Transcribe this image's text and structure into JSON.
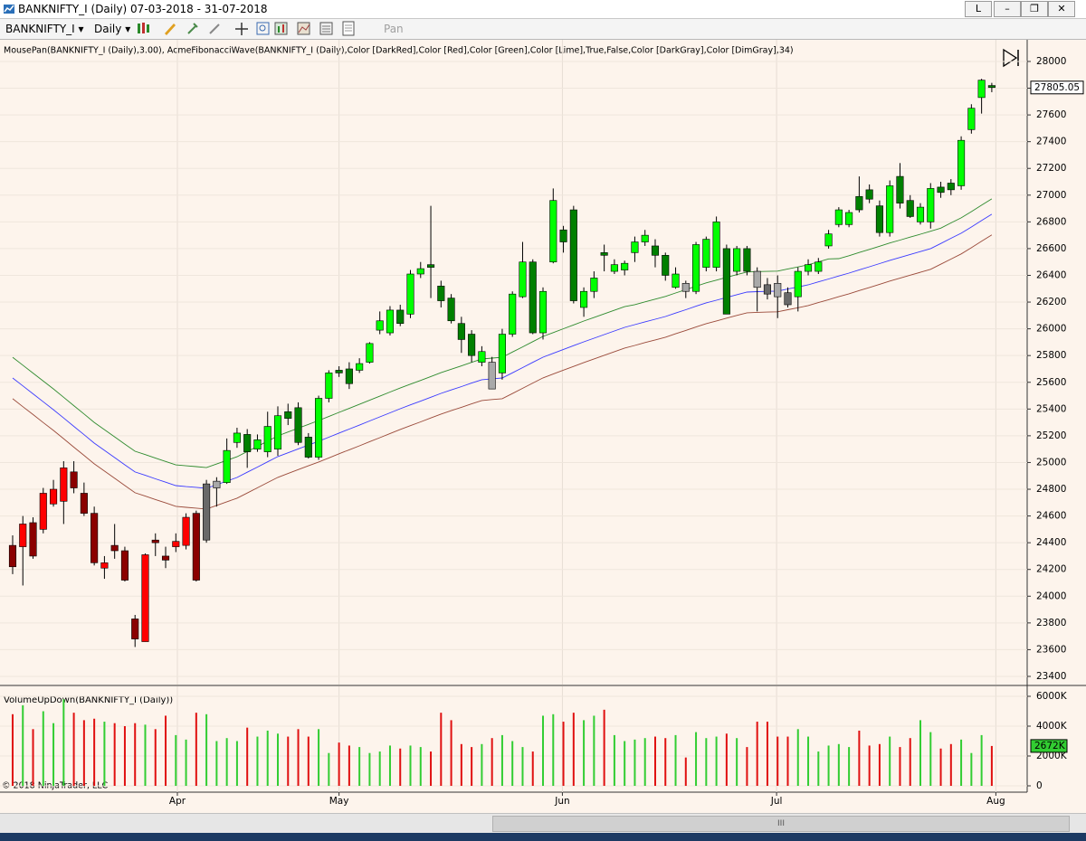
{
  "window": {
    "title": "BANKNIFTY_I (Daily)  07-03-2018 - 31-07-2018",
    "link_button": "L",
    "toolbar": {
      "instrument": "BANKNIFTY_I",
      "period": "Daily",
      "pan": "Pan"
    },
    "copyright": "© 2018 NinjaTrader, LLC"
  },
  "chart_data": [
    {
      "type": "candlestick",
      "title": "MousePan(BANKNIFTY_I (Daily),3.00), AcmeFibonacciWave(BANKNIFTY_I (Daily),Color [DarkRed],Color [Red],Color [Green],Color [Lime],True,False,Color [DarkGray],Color [DimGray],34)",
      "open": [
        24380,
        24370,
        24550,
        24500,
        24690,
        24710,
        24930,
        24770,
        24620,
        24210,
        24380,
        24340,
        23830,
        23660,
        24420,
        24300,
        24370,
        24380,
        24620,
        24420,
        24810,
        24850,
        25150,
        25210,
        25100,
        25080,
        25100,
        25380,
        25410,
        25190,
        25040,
        25480,
        25690,
        25700,
        25690,
        25750,
        25990,
        25970,
        26140,
        26110,
        26410,
        26480,
        26320,
        26230,
        26040,
        25960,
        25750,
        25750,
        25670,
        25960,
        26240,
        26500,
        25970,
        26500,
        26740,
        26890,
        26160,
        26280,
        26570,
        26430,
        26440,
        26570,
        26650,
        26620,
        26550,
        26310,
        26340,
        26280,
        26460,
        26460,
        26600,
        26430,
        26600,
        26430,
        26330,
        26340,
        26270,
        26240,
        26430,
        26430,
        26620,
        26780,
        26780,
        26990,
        27040,
        26920,
        26720,
        27140,
        26960,
        26800,
        26800,
        27060,
        27090,
        27070,
        27490,
        27730,
        27820
      ],
      "high": [
        24455,
        24600,
        24590,
        24810,
        24870,
        25010,
        25010,
        24850,
        24670,
        24300,
        24540,
        24370,
        23860,
        24320,
        24470,
        24370,
        24470,
        24620,
        24640,
        24870,
        24890,
        25180,
        25260,
        25250,
        25210,
        25380,
        25420,
        25440,
        25450,
        25220,
        25500,
        25690,
        25720,
        25750,
        25780,
        25900,
        26130,
        26170,
        26180,
        26440,
        26500,
        26920,
        26360,
        26260,
        26090,
        25990,
        25870,
        25790,
        26000,
        26280,
        26650,
        26520,
        26310,
        27050,
        26770,
        26920,
        26310,
        26430,
        26630,
        26520,
        26510,
        26690,
        26740,
        26670,
        26570,
        26460,
        26360,
        26650,
        26690,
        26840,
        26630,
        26620,
        26620,
        26460,
        26380,
        26400,
        26310,
        26460,
        26520,
        26530,
        26740,
        26910,
        26890,
        27140,
        27080,
        26960,
        27110,
        27240,
        27000,
        26940,
        27090,
        27100,
        27120,
        27440,
        27680,
        27870,
        27840
      ],
      "low": [
        24165,
        24080,
        24280,
        24470,
        24670,
        24540,
        24770,
        24600,
        24230,
        24130,
        24280,
        24110,
        23620,
        23660,
        24300,
        24210,
        24330,
        24350,
        24110,
        24400,
        24670,
        24840,
        25110,
        24960,
        25080,
        25040,
        25050,
        25280,
        25130,
        25030,
        25020,
        25450,
        25640,
        25550,
        25670,
        25740,
        25960,
        25950,
        26020,
        26080,
        26380,
        26230,
        26160,
        26040,
        25820,
        25750,
        25720,
        25550,
        25620,
        25940,
        26230,
        25960,
        25920,
        26490,
        26570,
        26190,
        26090,
        26230,
        26430,
        26410,
        26400,
        26500,
        26620,
        26460,
        26360,
        26300,
        26230,
        26260,
        26430,
        26430,
        26110,
        26400,
        26400,
        26130,
        26220,
        26080,
        26160,
        26130,
        26400,
        26410,
        26600,
        26760,
        26760,
        26870,
        26940,
        26690,
        26690,
        26900,
        26830,
        26780,
        26750,
        26980,
        27000,
        27040,
        27460,
        27610,
        27770
      ],
      "close": [
        24220,
        24540,
        24300,
        24770,
        24800,
        24960,
        24810,
        24620,
        24250,
        24250,
        24340,
        24120,
        23680,
        24310,
        24400,
        24270,
        24410,
        24590,
        24120,
        24840,
        24860,
        25090,
        25220,
        25080,
        25170,
        25270,
        25350,
        25330,
        25150,
        25040,
        25480,
        25670,
        25670,
        25590,
        25740,
        25890,
        26060,
        26140,
        26040,
        26410,
        26450,
        26460,
        26210,
        26060,
        25920,
        25800,
        25830,
        25550,
        25960,
        26260,
        26500,
        25970,
        26280,
        26960,
        26650,
        26210,
        26280,
        26380,
        26550,
        26480,
        26490,
        26650,
        26700,
        26550,
        26400,
        26410,
        26280,
        26630,
        26670,
        26800,
        26110,
        26600,
        26430,
        26310,
        26260,
        26240,
        26180,
        26430,
        26480,
        26500,
        26710,
        26890,
        26870,
        26890,
        26970,
        26720,
        27070,
        26940,
        26840,
        26910,
        27050,
        27020,
        27040,
        27410,
        27650,
        27860,
        27805.05
      ],
      "colors": [
        "#8b0000",
        "#ff0000",
        "#8b0000",
        "#ff0000",
        "#ff0000",
        "#ff0000",
        "#8b0000",
        "#8b0000",
        "#8b0000",
        "#ff0000",
        "#8b0000",
        "#8b0000",
        "#8b0000",
        "#ff0000",
        "#8b0000",
        "#8b0000",
        "#ff0000",
        "#ff0000",
        "#8b0000",
        "#696969",
        "#a9a9a9",
        "#00ff00",
        "#00ff00",
        "#008000",
        "#00ff00",
        "#00ff00",
        "#00ff00",
        "#008000",
        "#008000",
        "#008000",
        "#00ff00",
        "#00ff00",
        "#008000",
        "#008000",
        "#00ff00",
        "#00ff00",
        "#00ff00",
        "#00ff00",
        "#008000",
        "#00ff00",
        "#00ff00",
        "#008000",
        "#008000",
        "#008000",
        "#008000",
        "#008000",
        "#00ff00",
        "#a9a9a9",
        "#00ff00",
        "#00ff00",
        "#00ff00",
        "#008000",
        "#00ff00",
        "#00ff00",
        "#008000",
        "#008000",
        "#00ff00",
        "#00ff00",
        "#008000",
        "#00ff00",
        "#00ff00",
        "#00ff00",
        "#00ff00",
        "#008000",
        "#008000",
        "#00ff00",
        "#a9a9a9",
        "#00ff00",
        "#00ff00",
        "#00ff00",
        "#008000",
        "#00ff00",
        "#008000",
        "#a9a9a9",
        "#696969",
        "#a9a9a9",
        "#696969",
        "#00ff00",
        "#00ff00",
        "#00ff00",
        "#00ff00",
        "#00ff00",
        "#00ff00",
        "#008000",
        "#008000",
        "#008000",
        "#00ff00",
        "#008000",
        "#008000",
        "#00ff00",
        "#00ff00",
        "#008000",
        "#008000",
        "#00ff00",
        "#00ff00",
        "#00ff00",
        "#008000"
      ],
      "series": [
        {
          "color": "#2e8b2e",
          "values": [
            25787,
            25728,
            25669,
            25609,
            25550,
            25488,
            25425,
            25363,
            25300,
            25246,
            25192,
            25138,
            25084,
            25059,
            25033,
            25008,
            24982,
            24975,
            24969,
            24962,
            24989,
            25016,
            25043,
            25082,
            25121,
            25160,
            25199,
            25228,
            25257,
            25285,
            25314,
            25344,
            25375,
            25405,
            25435,
            25466,
            25496,
            25527,
            25557,
            25586,
            25614,
            25643,
            25672,
            25698,
            25723,
            25749,
            25774,
            25781,
            25787,
            25826,
            25865,
            25904,
            25943,
            25972,
            26001,
            26029,
            26058,
            26085,
            26112,
            26139,
            26166,
            26181,
            26202,
            26222,
            26242,
            26268,
            26293,
            26319,
            26344,
            26364,
            26385,
            26405,
            26425,
            26428,
            26430,
            26432,
            26448,
            26463,
            26479,
            26501,
            26523,
            26525,
            26547,
            26571,
            26594,
            26618,
            26642,
            26664,
            26686,
            26708,
            26730,
            26753,
            26792,
            26830,
            26877,
            26925,
            26972
          ]
        },
        {
          "color": "#3a3aff",
          "values": [
            25632,
            25573,
            25514,
            25454,
            25395,
            25333,
            25270,
            25208,
            25145,
            25091,
            25037,
            24983,
            24929,
            24904,
            24878,
            24853,
            24827,
            24820,
            24814,
            24807,
            24834,
            24861,
            24888,
            24927,
            24966,
            25005,
            25044,
            25073,
            25102,
            25130,
            25159,
            25189,
            25220,
            25250,
            25280,
            25311,
            25341,
            25372,
            25402,
            25431,
            25459,
            25488,
            25517,
            25543,
            25568,
            25594,
            25619,
            25626,
            25632,
            25671,
            25710,
            25749,
            25788,
            25817,
            25846,
            25874,
            25903,
            25930,
            25957,
            25984,
            26011,
            26031,
            26052,
            26072,
            26092,
            26118,
            26143,
            26169,
            26194,
            26214,
            26235,
            26255,
            26275,
            26278,
            26280,
            26282,
            26298,
            26313,
            26329,
            26351,
            26373,
            26395,
            26417,
            26441,
            26464,
            26488,
            26512,
            26534,
            26556,
            26578,
            26600,
            26638,
            26677,
            26715,
            26762,
            26810,
            26857
          ]
        },
        {
          "color": "#9a4a3a",
          "values": [
            25477,
            25418,
            25359,
            25299,
            25240,
            25178,
            25115,
            25053,
            24990,
            24936,
            24882,
            24828,
            24774,
            24749,
            24723,
            24698,
            24672,
            24665,
            24659,
            24652,
            24679,
            24706,
            24733,
            24772,
            24811,
            24850,
            24889,
            24918,
            24947,
            24975,
            25004,
            25034,
            25065,
            25095,
            25125,
            25156,
            25186,
            25217,
            25247,
            25276,
            25304,
            25333,
            25362,
            25388,
            25413,
            25439,
            25464,
            25471,
            25477,
            25516,
            25555,
            25594,
            25633,
            25662,
            25691,
            25719,
            25748,
            25775,
            25802,
            25829,
            25856,
            25876,
            25897,
            25917,
            25937,
            25963,
            25988,
            26014,
            26039,
            26059,
            26080,
            26100,
            26120,
            26123,
            26125,
            26127,
            26143,
            26158,
            26174,
            26196,
            26218,
            26240,
            26262,
            26286,
            26309,
            26333,
            26357,
            26379,
            26401,
            26423,
            26445,
            26483,
            26522,
            26560,
            26607,
            26655,
            26702
          ]
        }
      ],
      "xlim": [
        -1.24,
        99.47
      ],
      "xticks": [
        16.15,
        32.0,
        53.9,
        74.9,
        96.4
      ],
      "ylim": [
        23339,
        28135
      ],
      "yticks": [
        23400,
        23600,
        23800,
        24000,
        24200,
        24400,
        24600,
        24800,
        25000,
        25200,
        25400,
        25600,
        25800,
        26000,
        26200,
        26400,
        26600,
        26800,
        27000,
        27200,
        27400,
        27600,
        27800,
        28000
      ],
      "grid": true
    },
    {
      "type": "bar",
      "title": "VolumeUpDown(BANKNIFTY_I (Daily))",
      "values": [
        4800000,
        5400000,
        3800000,
        5000000,
        4200000,
        5800000,
        4900000,
        4400000,
        4500000,
        4300000,
        4200000,
        4000000,
        4200000,
        4100000,
        3800000,
        4700000,
        3400000,
        3100000,
        4900000,
        4800000,
        3000000,
        3200000,
        3000000,
        3900000,
        3300000,
        3700000,
        3500000,
        3300000,
        3800000,
        3300000,
        3800000,
        2200000,
        2900000,
        2700000,
        2600000,
        2200000,
        2300000,
        2700000,
        2500000,
        2700000,
        2600000,
        2300000,
        4900000,
        4400000,
        2800000,
        2600000,
        2800000,
        3200000,
        3400000,
        3000000,
        2600000,
        2300000,
        4700000,
        4800000,
        4300000,
        4900000,
        4400000,
        4700000,
        5100000,
        3400000,
        3000000,
        3100000,
        3200000,
        3300000,
        3200000,
        3400000,
        1900000,
        3600000,
        3200000,
        3300000,
        3500000,
        3200000,
        2600000,
        4300000,
        4300000,
        3300000,
        3300000,
        3800000,
        3300000,
        2300000,
        2700000,
        2800000,
        2600000,
        3700000,
        2700000,
        2800000,
        3300000,
        2600000,
        3200000,
        4400000,
        3600000,
        2500000,
        2800000,
        3100000,
        2200000,
        3400000,
        2672000
      ],
      "value_labels": [
        null,
        null,
        null,
        null,
        null,
        null,
        null,
        null,
        null,
        null,
        null,
        null,
        null,
        null,
        null,
        null,
        null,
        null,
        null,
        null,
        null,
        null,
        null,
        null,
        null,
        null,
        null,
        null,
        null,
        null,
        null,
        null,
        null,
        null,
        null,
        null,
        null,
        null,
        null,
        null,
        null,
        null,
        null,
        null,
        null,
        null,
        null,
        null,
        null,
        null,
        null,
        null,
        null,
        null,
        null,
        null,
        null,
        null,
        null,
        null,
        null,
        null,
        null,
        null,
        null,
        null,
        null,
        null,
        null,
        null,
        null,
        null,
        null,
        null,
        null,
        null,
        null,
        null,
        null,
        null,
        null,
        null,
        null,
        null,
        null,
        null,
        null,
        null,
        null,
        null,
        null,
        null,
        null,
        null,
        null,
        null,
        "2672K"
      ],
      "up_color": "#32cd32",
      "down_color": "#e01010",
      "xlim": [
        -1.24,
        99.47
      ],
      "xticks": [
        {
          "value": 16.15,
          "label": "Apr"
        },
        {
          "value": 32.0,
          "label": "May"
        },
        {
          "value": 53.9,
          "label": "Jun"
        },
        {
          "value": 74.9,
          "label": "Jul"
        },
        {
          "value": 96.4,
          "label": "Aug"
        }
      ],
      "ylim": [
        -545000,
        6606000
      ],
      "yticks": [
        0,
        {
          "value": 2000000,
          "label": "2000K"
        },
        {
          "value": 4000000,
          "label": "4000K"
        },
        {
          "value": 6000000,
          "label": "6000K"
        }
      ],
      "grid": true
    }
  ]
}
